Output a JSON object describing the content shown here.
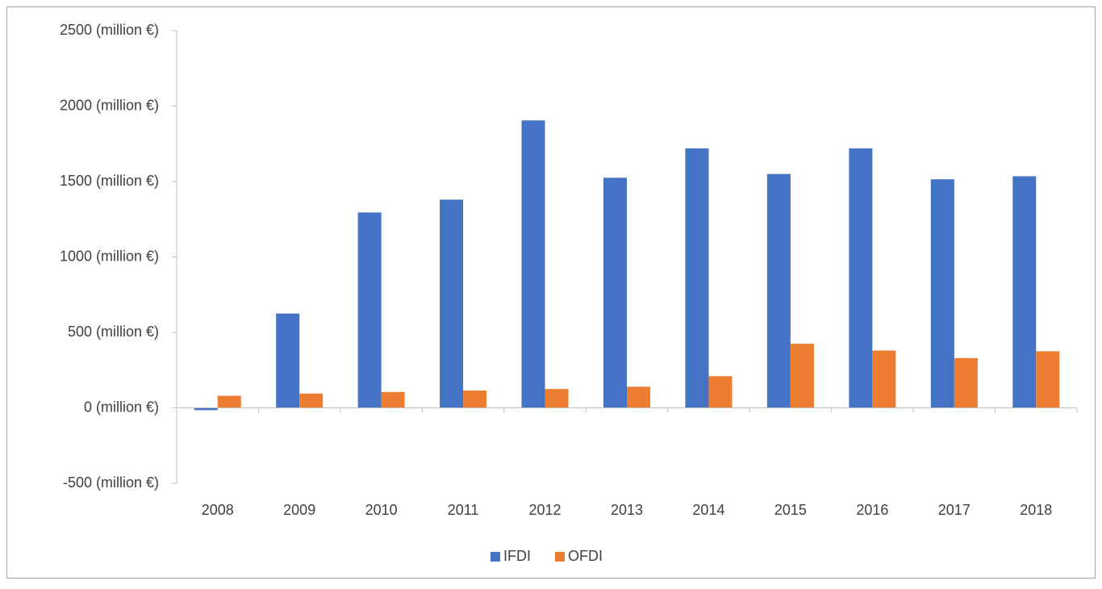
{
  "chart_data": {
    "type": "bar",
    "categories": [
      "2008",
      "2009",
      "2010",
      "2011",
      "2012",
      "2013",
      "2014",
      "2015",
      "2016",
      "2017",
      "2018"
    ],
    "series": [
      {
        "name": "IFDI",
        "color": "#4472c4",
        "values": [
          -15,
          625,
          1295,
          1380,
          1905,
          1525,
          1720,
          1550,
          1720,
          1515,
          1535
        ]
      },
      {
        "name": "OFDI",
        "color": "#ed7d31",
        "values": [
          80,
          95,
          105,
          115,
          125,
          140,
          210,
          425,
          380,
          330,
          375
        ]
      }
    ],
    "ylim": [
      -500,
      2500
    ],
    "yticks": [
      {
        "value": -500,
        "label": "-500 (million €)"
      },
      {
        "value": 0,
        "label": "0 (million €)"
      },
      {
        "value": 500,
        "label": "500 (million €)"
      },
      {
        "value": 1000,
        "label": "1000 (million €)"
      },
      {
        "value": 1500,
        "label": "1500 (million €)"
      },
      {
        "value": 2000,
        "label": "2000 (million €)"
      },
      {
        "value": 2500,
        "label": "2500 (million €)"
      }
    ],
    "grid": false,
    "legend": "bottom"
  }
}
